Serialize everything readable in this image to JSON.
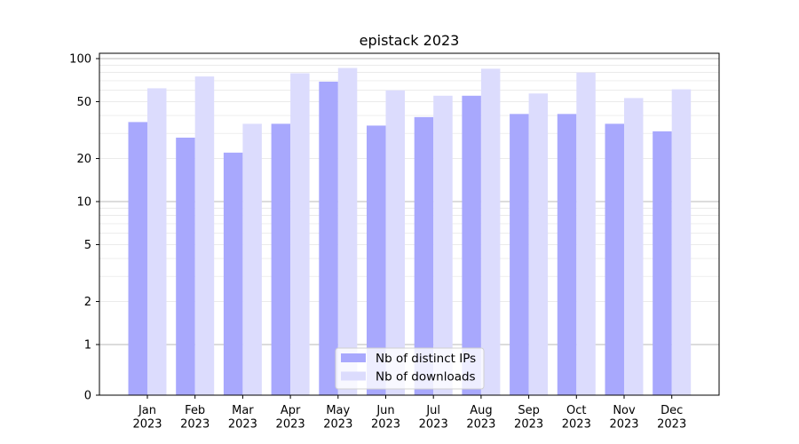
{
  "chart_data": {
    "type": "bar",
    "title": "epistack 2023",
    "xlabel": "",
    "ylabel": "",
    "yscale": "symlog",
    "ylim": [
      0,
      100
    ],
    "yticks": [
      0,
      1,
      2,
      5,
      10,
      20,
      50,
      100
    ],
    "ytick_labels": [
      "0",
      "1",
      "2",
      "5",
      "10",
      "20",
      "50",
      "100"
    ],
    "grid": "horizontal",
    "legend_position": "bottom-center",
    "categories": [
      "Jan\n2023",
      "Feb\n2023",
      "Mar\n2023",
      "Apr\n2023",
      "May\n2023",
      "Jun\n2023",
      "Jul\n2023",
      "Aug\n2023",
      "Sep\n2023",
      "Oct\n2023",
      "Nov\n2023",
      "Dec\n2023"
    ],
    "category_lines": [
      [
        "Jan",
        "2023"
      ],
      [
        "Feb",
        "2023"
      ],
      [
        "Mar",
        "2023"
      ],
      [
        "Apr",
        "2023"
      ],
      [
        "May",
        "2023"
      ],
      [
        "Jun",
        "2023"
      ],
      [
        "Jul",
        "2023"
      ],
      [
        "Aug",
        "2023"
      ],
      [
        "Sep",
        "2023"
      ],
      [
        "Oct",
        "2023"
      ],
      [
        "Nov",
        "2023"
      ],
      [
        "Dec",
        "2023"
      ]
    ],
    "series": [
      {
        "name": "Nb of distinct IPs",
        "color": "#a8a8fd",
        "values": [
          36,
          28,
          22,
          35,
          69,
          34,
          39,
          55,
          41,
          41,
          35,
          31
        ]
      },
      {
        "name": "Nb of downloads",
        "color": "#dcdcfd",
        "values": [
          62,
          75,
          35,
          79,
          86,
          60,
          55,
          85,
          57,
          80,
          53,
          61
        ]
      }
    ]
  }
}
